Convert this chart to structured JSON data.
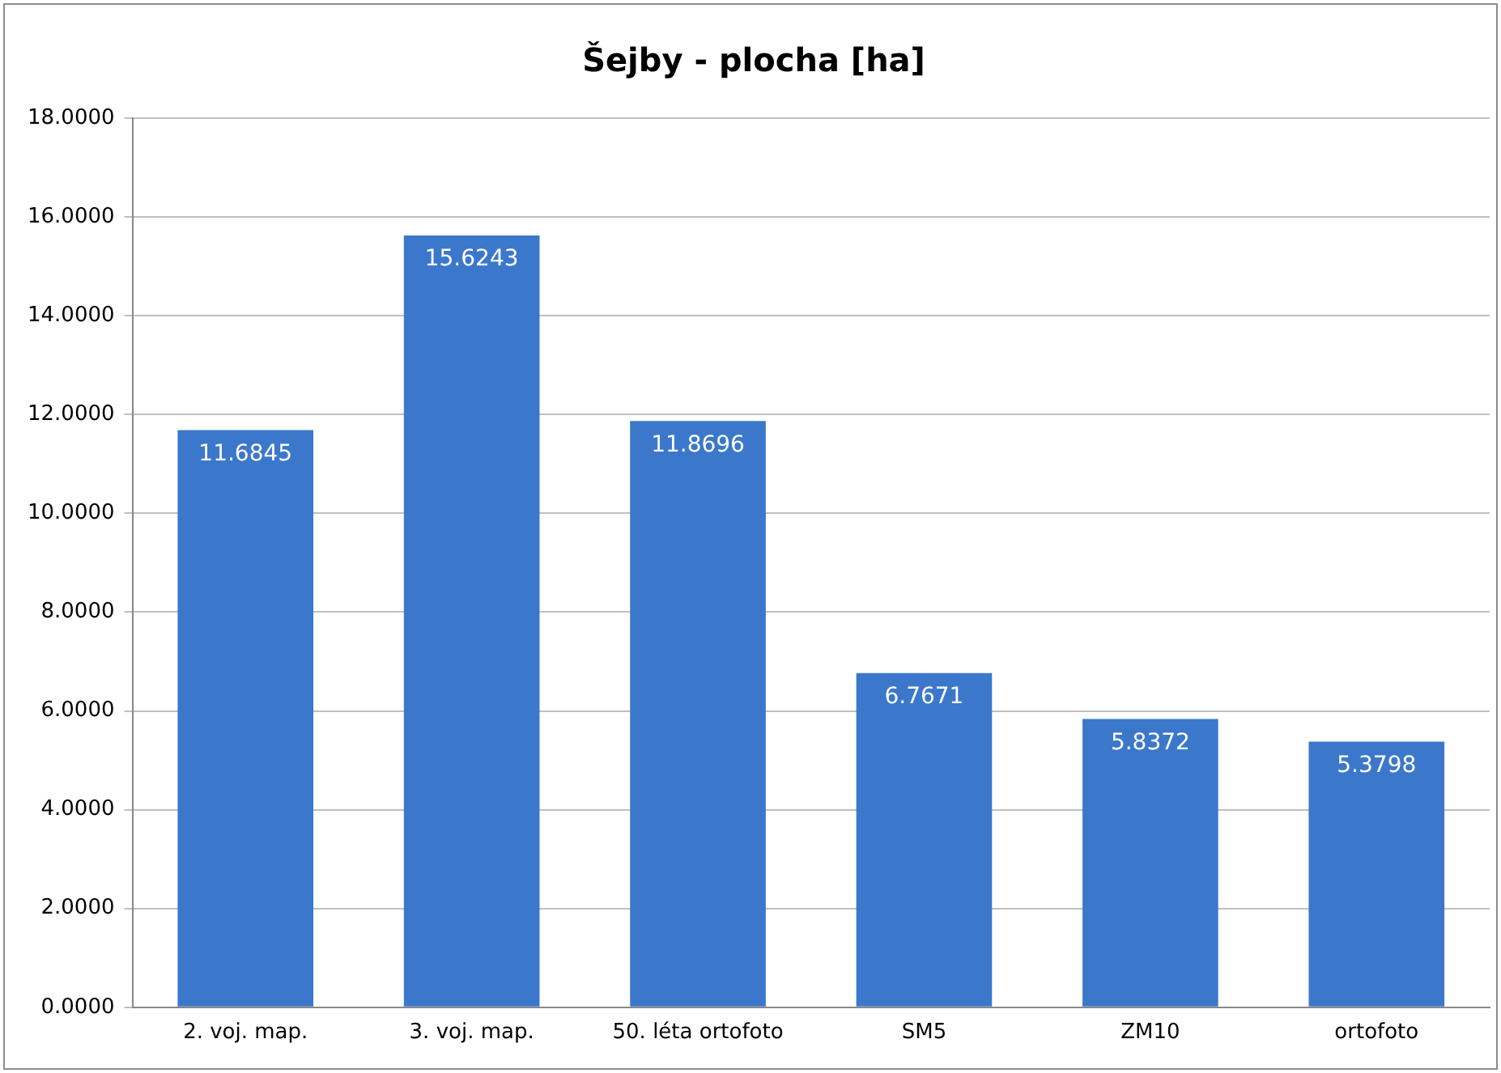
{
  "chart_data": {
    "type": "bar",
    "title": "Šejby - plocha [ha]",
    "categories": [
      "2. voj. map.",
      "3. voj. map.",
      "50. léta ortofoto",
      "SM5",
      "ZM10",
      "ortofoto"
    ],
    "values": [
      11.6845,
      15.6243,
      11.8696,
      6.7671,
      5.8372,
      5.3798
    ],
    "color": "#3b78cc",
    "ylim": [
      0,
      18
    ],
    "yticks": [
      {
        "value": 0,
        "label": "0.0000"
      },
      {
        "value": 2,
        "label": "2.0000"
      },
      {
        "value": 4,
        "label": "4.0000"
      },
      {
        "value": 6,
        "label": "6.0000"
      },
      {
        "value": 8,
        "label": "8.0000"
      },
      {
        "value": 10,
        "label": "10.0000"
      },
      {
        "value": 12,
        "label": "12.0000"
      },
      {
        "value": 14,
        "label": "14.0000"
      },
      {
        "value": 16,
        "label": "16.0000"
      },
      {
        "value": 18,
        "label": "18.0000"
      }
    ],
    "grid": "y",
    "data_labels": true
  }
}
